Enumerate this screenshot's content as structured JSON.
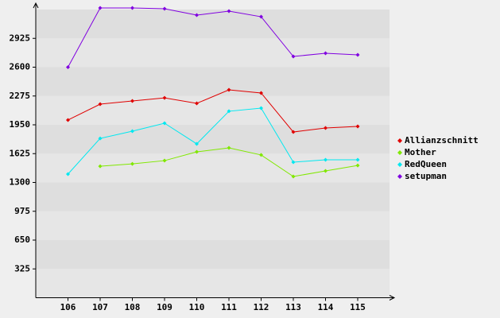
{
  "chart_data": {
    "type": "line",
    "categories": [
      "106",
      "107",
      "108",
      "109",
      "110",
      "111",
      "112",
      "113",
      "114",
      "115"
    ],
    "series": [
      {
        "name": "Allianzschnitt",
        "color": "#e00000",
        "values": [
          2004,
          2183,
          2219,
          2254,
          2192,
          2344,
          2309,
          1869,
          1914,
          1932
        ]
      },
      {
        "name": "Mother",
        "color": "#80e800",
        "values": [
          null,
          1483,
          1510,
          1546,
          1645,
          1690,
          1610,
          1367,
          1430,
          1492
        ]
      },
      {
        "name": "RedQueen",
        "color": "#00e8f0",
        "values": [
          1394,
          1797,
          1878,
          1968,
          1735,
          2103,
          2138,
          1529,
          1555,
          1555
        ]
      },
      {
        "name": "setupman",
        "color": "#8000e0",
        "values": [
          2600,
          3268,
          3268,
          3259,
          3187,
          3232,
          3169,
          2721,
          2757,
          2739
        ]
      }
    ],
    "ylim": [
      0,
      3250
    ],
    "yticks": [
      325,
      650,
      975,
      1300,
      1625,
      1950,
      2275,
      2600,
      2925
    ],
    "grid": true,
    "legend": "right"
  }
}
